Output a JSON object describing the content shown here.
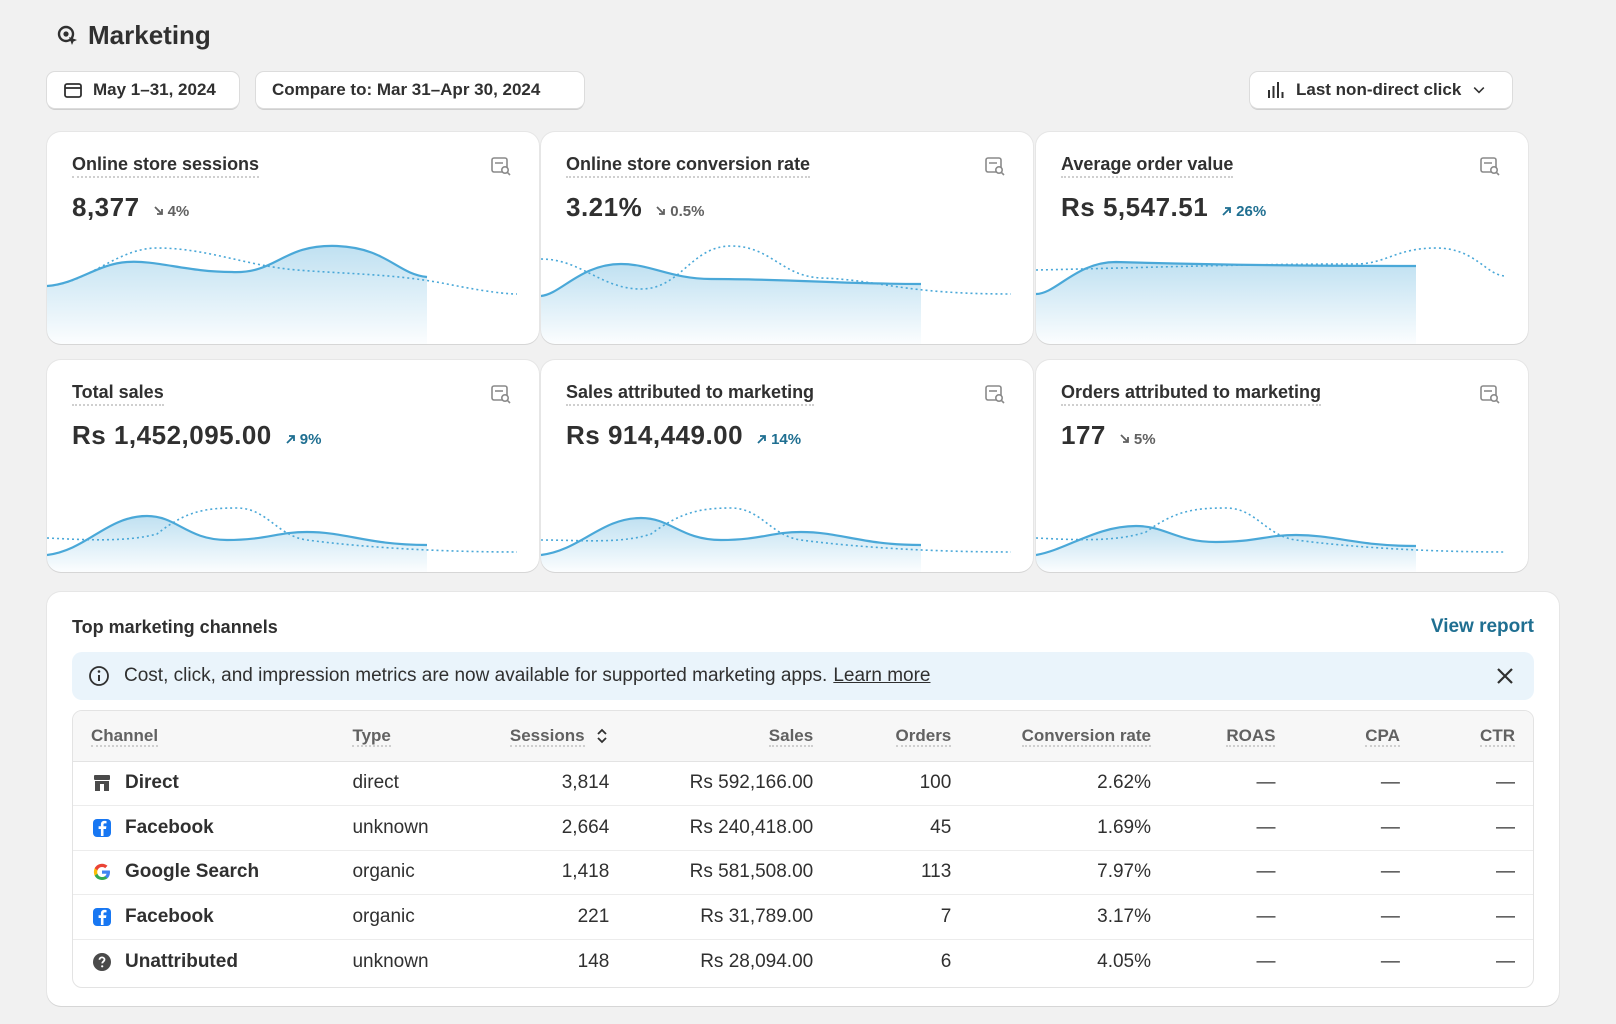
{
  "header": {
    "title": "Marketing",
    "icon": "target-cursor-icon"
  },
  "toolbar": {
    "date_range": "May 1–31, 2024",
    "compare": "Compare to: Mar 31–Apr 30, 2024",
    "attribution": "Last non-direct click"
  },
  "metrics": [
    {
      "title": "Online store sessions",
      "value": "8,377",
      "delta": "4%",
      "direction": "down"
    },
    {
      "title": "Online store conversion rate",
      "value": "3.21%",
      "delta": "0.5%",
      "direction": "down"
    },
    {
      "title": "Average order value",
      "value": "Rs 5,547.51",
      "delta": "26%",
      "direction": "up"
    },
    {
      "title": "Total sales",
      "value": "Rs 1,452,095.00",
      "delta": "9%",
      "direction": "up"
    },
    {
      "title": "Sales attributed to marketing",
      "value": "Rs 914,449.00",
      "delta": "14%",
      "direction": "up"
    },
    {
      "title": "Orders attributed to marketing",
      "value": "177",
      "delta": "5%",
      "direction": "down"
    }
  ],
  "channels": {
    "title": "Top marketing channels",
    "view_report": "View report",
    "banner": {
      "text": "Cost, click, and impression metrics are now available for supported marketing apps.",
      "link": "Learn more"
    },
    "columns": [
      "Channel",
      "Type",
      "Sessions",
      "Sales",
      "Orders",
      "Conversion rate",
      "ROAS",
      "CPA",
      "CTR"
    ],
    "rows": [
      {
        "channel": "Direct",
        "icon": "store-icon",
        "type": "direct",
        "sessions": "3,814",
        "sales": "Rs 592,166.00",
        "orders": "100",
        "conversion": "2.62%",
        "roas": "—",
        "cpa": "—",
        "ctr": "—"
      },
      {
        "channel": "Facebook",
        "icon": "facebook-icon",
        "type": "unknown",
        "sessions": "2,664",
        "sales": "Rs 240,418.00",
        "orders": "45",
        "conversion": "1.69%",
        "roas": "—",
        "cpa": "—",
        "ctr": "—"
      },
      {
        "channel": "Google Search",
        "icon": "google-icon",
        "type": "organic",
        "sessions": "1,418",
        "sales": "Rs 581,508.00",
        "orders": "113",
        "conversion": "7.97%",
        "roas": "—",
        "cpa": "—",
        "ctr": "—"
      },
      {
        "channel": "Facebook",
        "icon": "facebook-icon",
        "type": "organic",
        "sessions": "221",
        "sales": "Rs 31,789.00",
        "orders": "7",
        "conversion": "3.17%",
        "roas": "—",
        "cpa": "—",
        "ctr": "—"
      },
      {
        "channel": "Unattributed",
        "icon": "question-icon",
        "type": "unknown",
        "sessions": "148",
        "sales": "Rs 28,094.00",
        "orders": "6",
        "conversion": "4.05%",
        "roas": "—",
        "cpa": "—",
        "ctr": "—"
      }
    ]
  },
  "colors": {
    "accent": "#1f6f91",
    "spark": "#4aa8d8",
    "banner_bg": "#eaf4fb"
  }
}
